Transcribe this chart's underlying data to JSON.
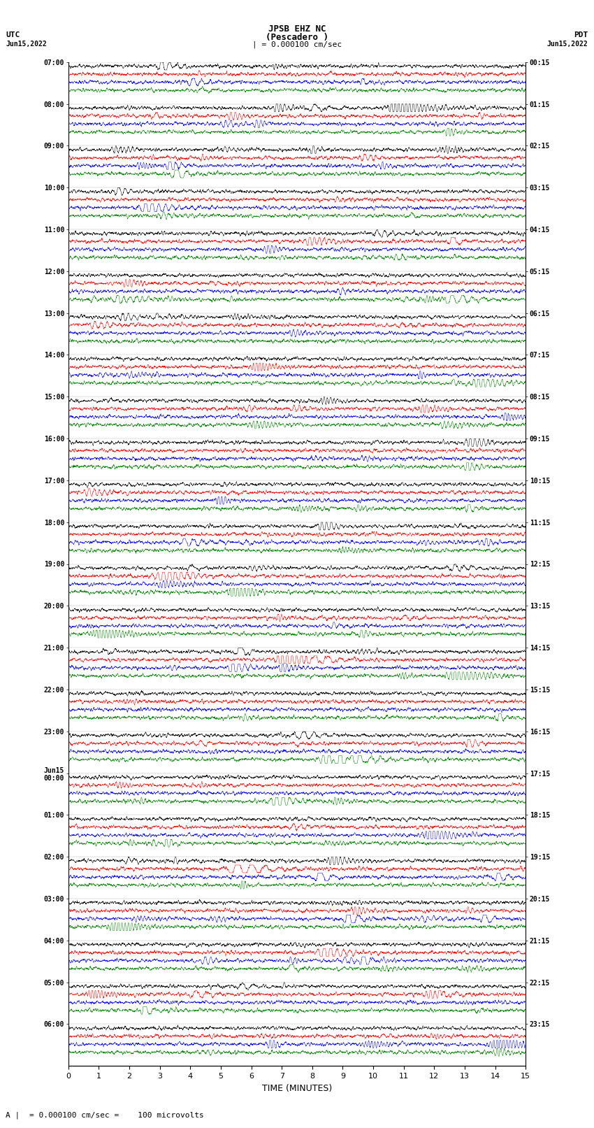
{
  "title_line1": "JPSB EHZ NC",
  "title_line2": "(Pescadero )",
  "title_line3": "| = 0.000100 cm/sec",
  "left_label_top": "UTC",
  "left_label_date": "Jun15,2022",
  "right_label_top": "PDT",
  "right_label_date": "Jun15,2022",
  "xlabel": "TIME (MINUTES)",
  "bottom_note": "= 0.000100 cm/sec =    100 microvolts",
  "utc_times": [
    "07:00",
    "08:00",
    "09:00",
    "10:00",
    "11:00",
    "12:00",
    "13:00",
    "14:00",
    "15:00",
    "16:00",
    "17:00",
    "18:00",
    "19:00",
    "20:00",
    "21:00",
    "22:00",
    "23:00",
    "Jun15\n00:00",
    "01:00",
    "02:00",
    "03:00",
    "04:00",
    "05:00",
    "06:00"
  ],
  "pdt_times": [
    "00:15",
    "01:15",
    "02:15",
    "03:15",
    "04:15",
    "05:15",
    "06:15",
    "07:15",
    "08:15",
    "09:15",
    "10:15",
    "11:15",
    "12:15",
    "13:15",
    "14:15",
    "15:15",
    "16:15",
    "17:15",
    "18:15",
    "19:15",
    "20:15",
    "21:15",
    "22:15",
    "23:15"
  ],
  "trace_colors": [
    "black",
    "red",
    "blue",
    "green"
  ],
  "n_hours": 24,
  "n_traces_per_hour": 4,
  "x_min": 0,
  "x_max": 15,
  "x_ticks": [
    0,
    1,
    2,
    3,
    4,
    5,
    6,
    7,
    8,
    9,
    10,
    11,
    12,
    13,
    14,
    15
  ],
  "background_color": "white",
  "seed": 42
}
